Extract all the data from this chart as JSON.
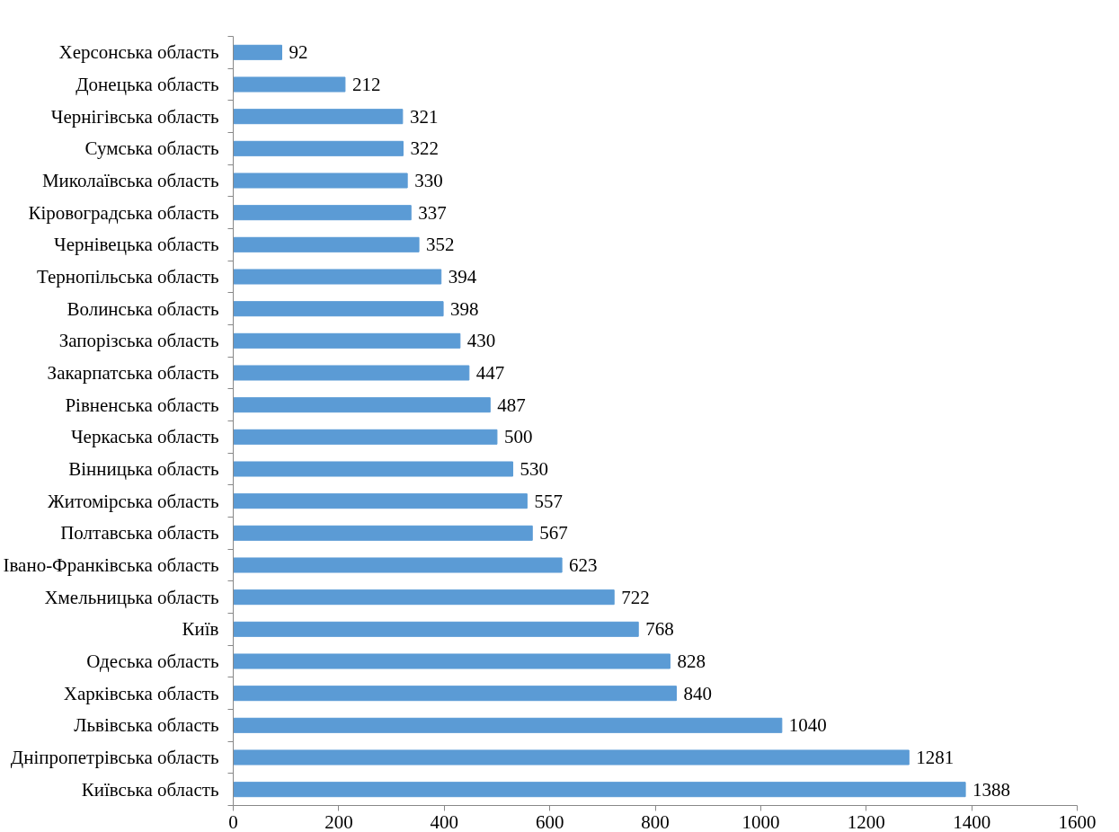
{
  "chart_data": {
    "type": "bar",
    "orientation": "horizontal",
    "categories": [
      "Херсонська область",
      "Донецька область",
      "Чернігівська область",
      "Сумська область",
      "Миколаївська область",
      "Кіровоградська область",
      "Чернівецька область",
      "Тернопільська область",
      "Волинська область",
      "Запорізська область",
      "Закарпатська область",
      "Рівненська область",
      "Черкаська область",
      "Вінницька область",
      "Житомірська область",
      "Полтавська область",
      "Івано-Франківська область",
      "Хмельницька область",
      "Київ",
      "Одеська область",
      "Харківська область",
      "Львівська область",
      "Дніпропетрівська область",
      "Київська область"
    ],
    "values": [
      92,
      212,
      321,
      322,
      330,
      337,
      352,
      394,
      398,
      430,
      447,
      487,
      500,
      530,
      557,
      567,
      623,
      722,
      768,
      828,
      840,
      1040,
      1281,
      1388
    ],
    "color": "#5b9bd5",
    "xlim": [
      0,
      1600
    ],
    "xticks": [
      0,
      200,
      400,
      600,
      800,
      1000,
      1200,
      1400,
      1600
    ],
    "grid": false,
    "data_labels": true
  }
}
